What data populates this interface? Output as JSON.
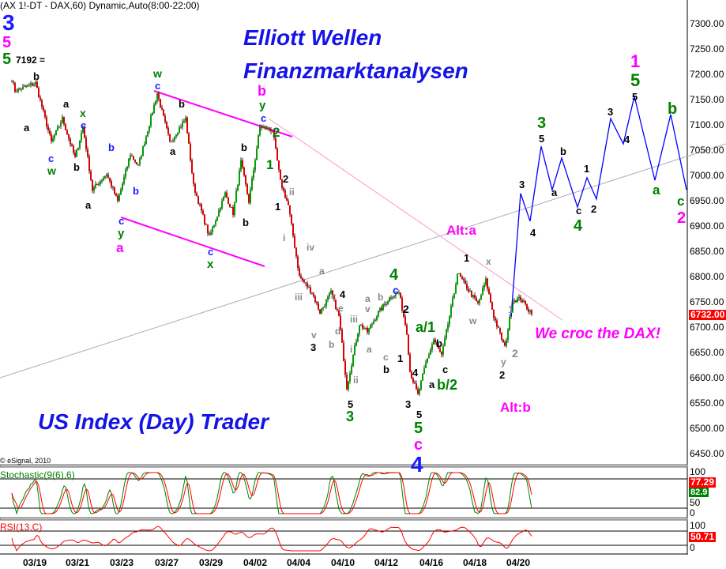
{
  "header": {
    "symbol_line": "(AX 1!-DT - DAX,60) Dynamic,Auto(8:00-22:00)",
    "copyright": "© eSignal, 2010"
  },
  "titles": {
    "line1": "Elliott Wellen",
    "line2": "Finanzmarktanalysen",
    "bottom": "US Index (Day) Trader",
    "slogan": "We croc the DAX!"
  },
  "colors": {
    "up": "#00a000",
    "down": "#e00000",
    "projection": "#0000ff",
    "channel": "#ff00ff",
    "title": "#1414e6",
    "stoch_k": "#008000",
    "stoch_d": "#ff0000",
    "rsi": "#ff0000"
  },
  "chart_data": {
    "type": "candlestick",
    "interval": "60 min",
    "y_axis": {
      "min": 6450,
      "max": 7300,
      "step": 50,
      "ticks": [
        "7300.00",
        "7250.00",
        "7200.00",
        "7150.00",
        "7100.00",
        "7050.00",
        "7000.00",
        "6950.00",
        "6900.00",
        "6850.00",
        "6800.00",
        "6750.00",
        "6700.00",
        "6650.00",
        "6600.00",
        "6550.00",
        "6500.00",
        "6450.00"
      ]
    },
    "x_ticks": [
      "03/19",
      "03/21",
      "03/23",
      "03/27",
      "03/29",
      "04/02",
      "04/04",
      "04/10",
      "04/12",
      "04/16",
      "04/18",
      "04/20"
    ],
    "sessions": [
      "03/18",
      "03/19",
      "03/20",
      "03/21",
      "03/22",
      "03/23",
      "03/26",
      "03/27",
      "03/28",
      "03/29",
      "04/01",
      "04/02",
      "04/03",
      "04/04",
      "04/09",
      "04/10",
      "04/11",
      "04/12",
      "04/15",
      "04/16",
      "04/17",
      "04/18",
      "04/19",
      "04/20",
      "04/21",
      "04/22",
      "04/23",
      "04/26",
      "04/27",
      "04/28",
      "04/29",
      "04/30"
    ],
    "last_price": "6732.00",
    "price_path": [
      [
        "03/18 8",
        7192
      ],
      [
        "03/18 10",
        7169
      ],
      [
        "03/19 9",
        7184
      ],
      [
        "03/19 19",
        7067
      ],
      [
        "03/20 12",
        7114
      ],
      [
        "03/20 20",
        7036
      ],
      [
        "03/21 11",
        7098
      ],
      [
        "03/21 17",
        6973
      ],
      [
        "03/22 12",
        7005
      ],
      [
        "03/22 19",
        6950
      ],
      [
        "03/23 13",
        7044
      ],
      [
        "03/23 18",
        7020
      ],
      [
        "03/26 16",
        7164
      ],
      [
        "03/27 10",
        7067
      ],
      [
        "03/27 20",
        7114
      ],
      [
        "03/28 11",
        6981
      ],
      [
        "03/28 21",
        6880
      ],
      [
        "03/29 17",
        6966
      ],
      [
        "04/01 8",
        6927
      ],
      [
        "04/01 13",
        7028
      ],
      [
        "04/01 18",
        6950
      ],
      [
        "04/02 11",
        7098
      ],
      [
        "04/02 19",
        7091
      ],
      [
        "04/03 10",
        6989
      ],
      [
        "04/03 15",
        6942
      ],
      [
        "04/04 8",
        6802
      ],
      [
        "04/04 16",
        6770
      ],
      [
        "04/04 21",
        6731
      ],
      [
        "04/09 14",
        6770
      ],
      [
        "04/09 19",
        6723
      ],
      [
        "04/10 10",
        6583
      ],
      [
        "04/10 18",
        6708
      ],
      [
        "04/11 9",
        6692
      ],
      [
        "04/11 16",
        6731
      ],
      [
        "04/12 10",
        6763
      ],
      [
        "04/12 15",
        6770
      ],
      [
        "04/12 20",
        6692
      ],
      [
        "04/15 8",
        6614
      ],
      [
        "04/15 13",
        6567
      ],
      [
        "04/15 18",
        6630
      ],
      [
        "04/16 9",
        6677
      ],
      [
        "04/16 14",
        6645
      ],
      [
        "04/17 8",
        6770
      ],
      [
        "04/17 10",
        6809
      ],
      [
        "04/17 18",
        6770
      ],
      [
        "04/18 9",
        6747
      ],
      [
        "04/18 14",
        6794
      ],
      [
        "04/18 19",
        6723
      ],
      [
        "04/19 12",
        6661
      ],
      [
        "04/19 17",
        6755
      ],
      [
        "04/20 8",
        6758
      ],
      [
        "04/20 13",
        6736
      ],
      [
        "04/20 15",
        6732
      ]
    ],
    "projection": [
      [
        "04/19 16",
        6723
      ],
      [
        "04/20 8",
        6966
      ],
      [
        "04/20 14",
        6911
      ],
      [
        "04/20 21",
        7059
      ],
      [
        "04/21 14",
        6973
      ],
      [
        "04/21 20",
        7036
      ],
      [
        "04/22 16",
        6939
      ],
      [
        "04/23 8",
        6997
      ],
      [
        "04/23 14",
        6955
      ],
      [
        "04/26 9",
        7114
      ],
      [
        "04/26 17",
        7064
      ],
      [
        "04/27 10",
        7158
      ],
      [
        "04/28 9",
        6992
      ],
      [
        "04/28 19",
        7122
      ],
      [
        "04/29 15",
        6973
      ]
    ],
    "indicators": {
      "stochastic": {
        "label": "Stochastic(9(6),6)",
        "k_last": "77.29",
        "d_last": "82.9",
        "ticks": [
          "100",
          "50",
          "0"
        ]
      },
      "rsi": {
        "label": "RSI(13,C)",
        "last": "50.71",
        "ticks": [
          "100",
          "0"
        ]
      }
    }
  },
  "annotations": [
    {
      "t": "3",
      "c": "#1a1aff"
    },
    {
      "t": "5",
      "c": "#ff00ff"
    },
    {
      "t": "5",
      "c": "#008000"
    },
    {
      "t": "7192 =",
      "c": "#000"
    },
    {
      "t": "b",
      "c": "#000"
    },
    {
      "t": "a",
      "c": "#000"
    },
    {
      "t": "a",
      "c": "#000"
    },
    {
      "t": "x",
      "c": "#008000"
    },
    {
      "t": "c",
      "c": "#1a1aff"
    },
    {
      "t": "b",
      "c": "#000"
    },
    {
      "t": "c",
      "c": "#1a1aff"
    },
    {
      "t": "w",
      "c": "#008000"
    },
    {
      "t": "a",
      "c": "#000"
    },
    {
      "t": "b",
      "c": "#1a1aff"
    },
    {
      "t": "b",
      "c": "#1a1aff"
    },
    {
      "t": "c",
      "c": "#1a1aff"
    },
    {
      "t": "y",
      "c": "#008000"
    },
    {
      "t": "a",
      "c": "#ff00ff"
    },
    {
      "t": "w",
      "c": "#008000"
    },
    {
      "t": "c",
      "c": "#1a1aff"
    },
    {
      "t": "b",
      "c": "#000"
    },
    {
      "t": "a",
      "c": "#000"
    },
    {
      "t": "b",
      "c": "#000"
    },
    {
      "t": "b",
      "c": "#000"
    },
    {
      "t": "c",
      "c": "#1a1aff"
    },
    {
      "t": "x",
      "c": "#008000"
    },
    {
      "t": "b",
      "c": "#ff00ff"
    },
    {
      "t": "y",
      "c": "#008000"
    },
    {
      "t": "c",
      "c": "#1a1aff"
    },
    {
      "t": "2",
      "c": "#008000"
    },
    {
      "t": "1",
      "c": "#008000"
    },
    {
      "t": "2",
      "c": "#000"
    },
    {
      "t": "ii",
      "c": "#888"
    },
    {
      "t": "1",
      "c": "#000"
    },
    {
      "t": "i",
      "c": "#888"
    },
    {
      "t": "iv",
      "c": "#888"
    },
    {
      "t": "iii",
      "c": "#888"
    },
    {
      "t": "a",
      "c": "#888"
    },
    {
      "t": "v",
      "c": "#888"
    },
    {
      "t": "3",
      "c": "#000"
    },
    {
      "t": "b",
      "c": "#888"
    },
    {
      "t": "c",
      "c": "#888"
    },
    {
      "t": "e",
      "c": "#888"
    },
    {
      "t": "d",
      "c": "#888"
    },
    {
      "t": "4",
      "c": "#000"
    },
    {
      "t": "ii",
      "c": "#888"
    },
    {
      "t": "5",
      "c": "#000"
    },
    {
      "t": "3",
      "c": "#008000"
    },
    {
      "t": "iii",
      "c": "#888"
    },
    {
      "t": "i",
      "c": "#888"
    },
    {
      "t": "a",
      "c": "#888"
    },
    {
      "t": "v",
      "c": "#888"
    },
    {
      "t": "a",
      "c": "#888"
    },
    {
      "t": "b",
      "c": "#888"
    },
    {
      "t": "c",
      "c": "#888"
    },
    {
      "t": "b",
      "c": "#000"
    },
    {
      "t": "4",
      "c": "#008000"
    },
    {
      "t": "c",
      "c": "#1a1aff"
    },
    {
      "t": "2",
      "c": "#000"
    },
    {
      "t": "1",
      "c": "#000"
    },
    {
      "t": "a/1",
      "c": "#008000"
    },
    {
      "t": "b",
      "c": "#000"
    },
    {
      "t": "4",
      "c": "#000"
    },
    {
      "t": "3",
      "c": "#000"
    },
    {
      "t": "a",
      "c": "#000"
    },
    {
      "t": "c",
      "c": "#000"
    },
    {
      "t": "b/2",
      "c": "#008000"
    },
    {
      "t": "5",
      "c": "#000"
    },
    {
      "t": "5",
      "c": "#008000"
    },
    {
      "t": "c",
      "c": "#ff00ff"
    },
    {
      "t": "4",
      "c": "#1a1aff"
    },
    {
      "t": "1",
      "c": "#000"
    },
    {
      "t": "x",
      "c": "#888"
    },
    {
      "t": "w",
      "c": "#888"
    },
    {
      "t": "y",
      "c": "#888"
    },
    {
      "t": "2",
      "c": "#000"
    },
    {
      "t": "2",
      "c": "#888"
    },
    {
      "t": "1",
      "c": "#888"
    },
    {
      "t": "Alt:a",
      "c": "#ff00ff"
    },
    {
      "t": "Alt:b",
      "c": "#ff00ff"
    },
    {
      "t": "3",
      "c": "#008000"
    },
    {
      "t": "5",
      "c": "#000"
    },
    {
      "t": "3",
      "c": "#000"
    },
    {
      "t": "4",
      "c": "#000"
    },
    {
      "t": "b",
      "c": "#000"
    },
    {
      "t": "a",
      "c": "#000"
    },
    {
      "t": "c",
      "c": "#000"
    },
    {
      "t": "4",
      "c": "#008000"
    },
    {
      "t": "1",
      "c": "#000"
    },
    {
      "t": "2",
      "c": "#000"
    },
    {
      "t": "3",
      "c": "#000"
    },
    {
      "t": "4",
      "c": "#000"
    },
    {
      "t": "1",
      "c": "#ff00ff"
    },
    {
      "t": "5",
      "c": "#008000"
    },
    {
      "t": "5",
      "c": "#000"
    },
    {
      "t": "b",
      "c": "#008000"
    },
    {
      "t": "a",
      "c": "#008000"
    },
    {
      "t": "c",
      "c": "#008000"
    },
    {
      "t": "2",
      "c": "#ff00ff"
    }
  ]
}
